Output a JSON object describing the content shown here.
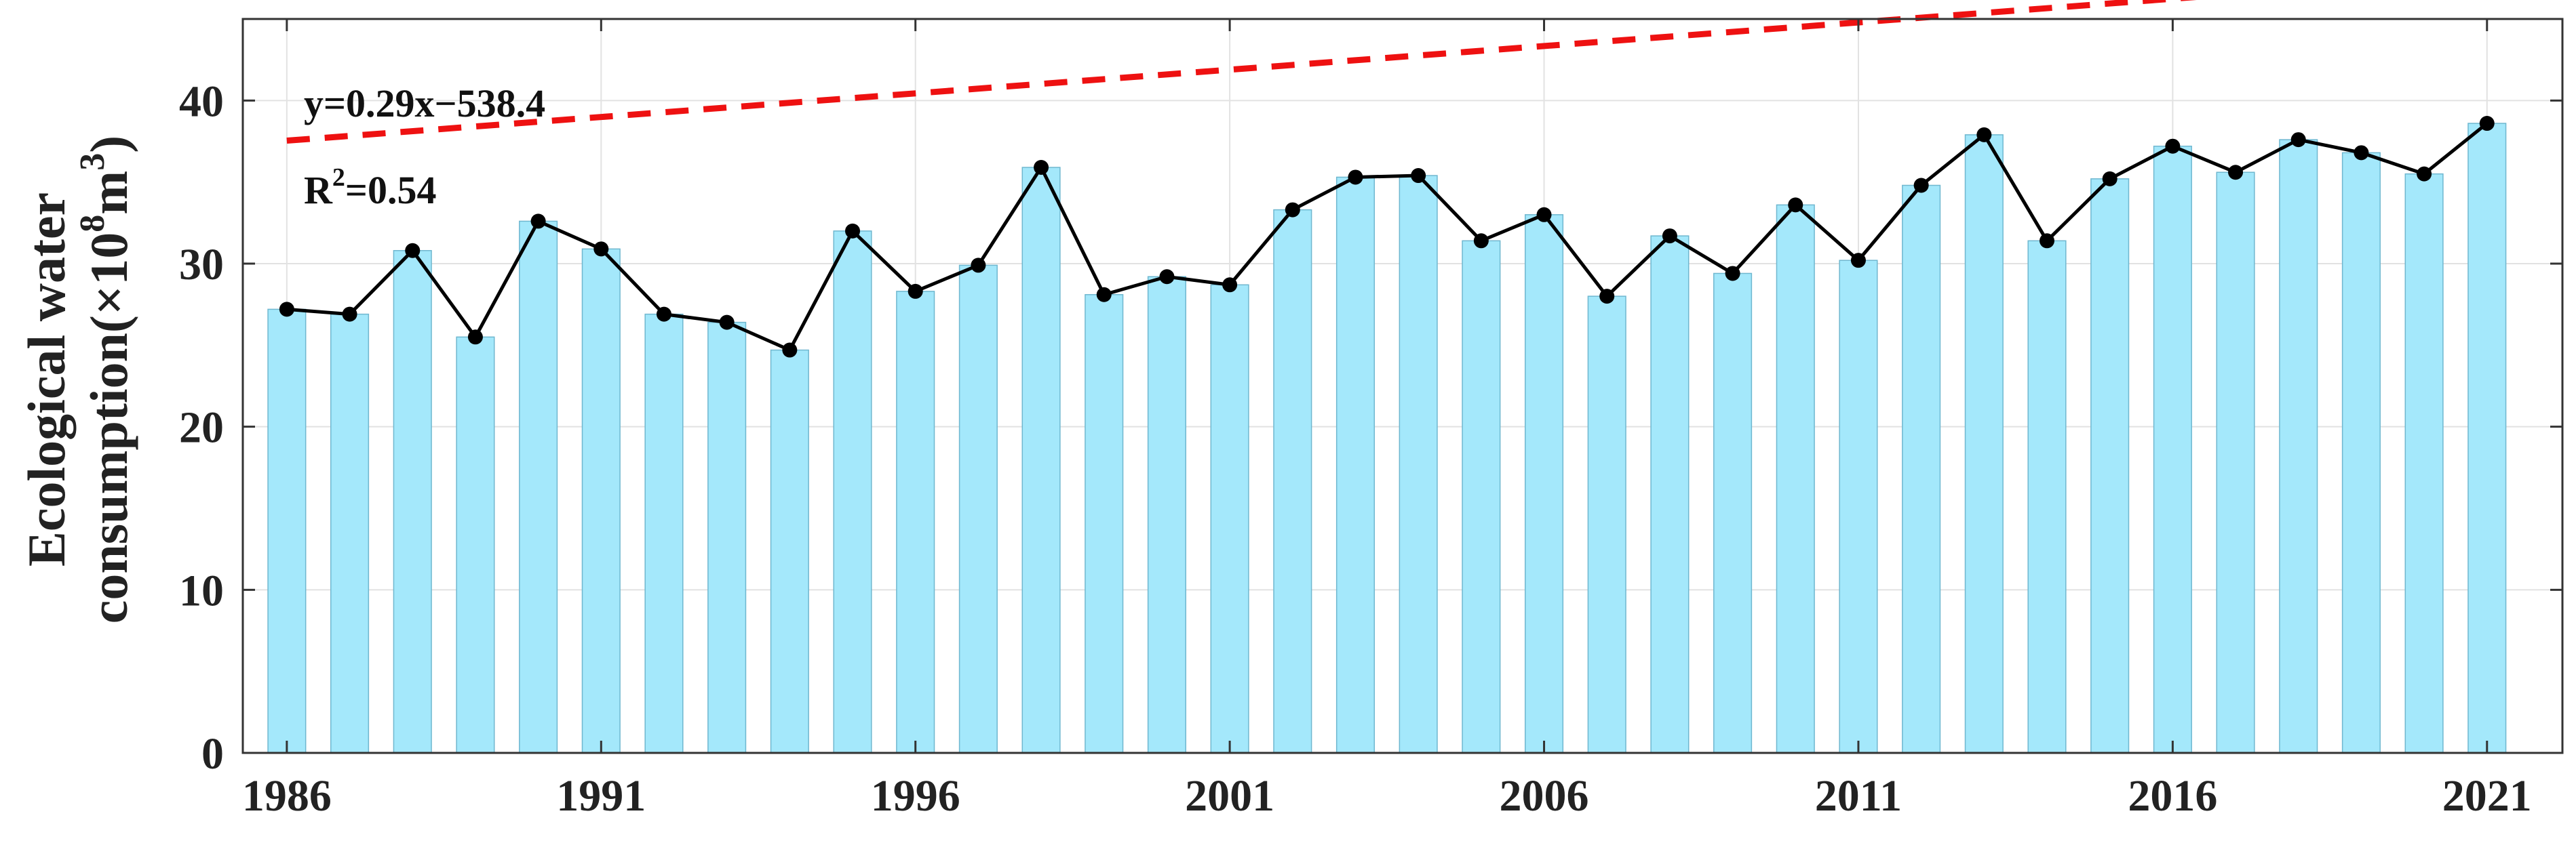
{
  "chart_data": {
    "type": "bar",
    "ylabel_line1": "Ecological water",
    "ylabel_line2_prefix": "consumption(×10",
    "ylabel_line2_exp1": "8",
    "ylabel_line2_mid": "m",
    "ylabel_line2_exp2": "3",
    "ylabel_line2_suffix": ")",
    "ylim": [
      0,
      45
    ],
    "xlim": [
      1985.3,
      2022.2
    ],
    "yticks": [
      0,
      10,
      20,
      30,
      40
    ],
    "xticks": [
      1986,
      1991,
      1996,
      2001,
      2006,
      2011,
      2016,
      2021
    ],
    "grid": true,
    "years": [
      1986,
      1987,
      1988,
      1989,
      1990,
      1991,
      1992,
      1993,
      1994,
      1995,
      1996,
      1997,
      1998,
      1999,
      2000,
      2001,
      2002,
      2003,
      2004,
      2005,
      2006,
      2007,
      2008,
      2009,
      2010,
      2011,
      2012,
      2013,
      2014,
      2015,
      2016,
      2017,
      2018,
      2019,
      2020,
      2021
    ],
    "values": [
      27.2,
      26.9,
      30.8,
      25.5,
      32.6,
      30.9,
      26.9,
      26.4,
      24.7,
      32.0,
      28.3,
      29.9,
      35.9,
      28.1,
      29.2,
      28.7,
      33.3,
      35.3,
      35.4,
      31.4,
      33.0,
      28.0,
      31.7,
      29.4,
      33.6,
      30.2,
      34.8,
      37.9,
      31.4,
      35.2,
      37.2,
      35.6,
      37.6,
      36.8,
      35.5,
      38.6
    ],
    "trend": {
      "slope": 0.29,
      "intercept": -538.4
    },
    "annotations": {
      "equation": "y=0.29x−538.4",
      "r2_prefix": "R",
      "r2_exp": "2",
      "r2_suffix": "=0.54"
    },
    "colors": {
      "bar_fill": "#a4e8fb",
      "bar_stroke": "#6fb7cf",
      "line": "#000000",
      "marker": "#000000",
      "trend": "#ee1111",
      "grid": "#e2e2e2",
      "axis": "#333333"
    }
  }
}
